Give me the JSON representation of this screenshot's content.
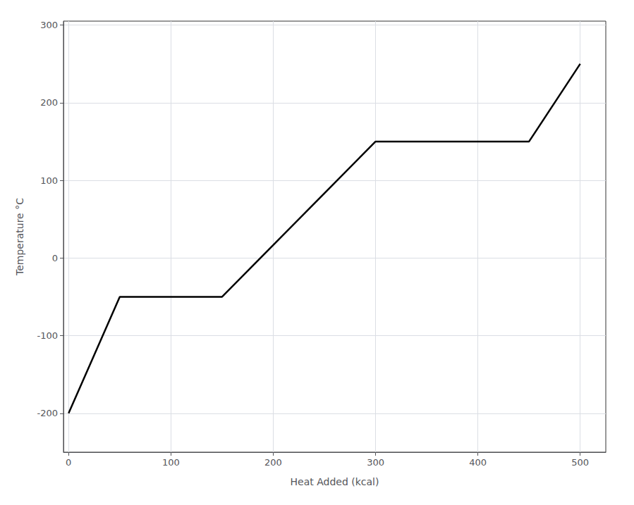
{
  "chart_data": {
    "type": "line",
    "x": [
      0,
      50,
      50,
      150,
      300,
      300,
      450,
      500
    ],
    "values": [
      -200,
      -50,
      -50,
      -50,
      150,
      150,
      150,
      250
    ],
    "color": "#000000",
    "line_style": "solid",
    "xlabel": "Heat Added (kcal)",
    "ylabel": "Temperature °C",
    "xlim": [
      -5,
      525
    ],
    "ylim": [
      -250,
      305
    ],
    "xticks": [
      0,
      100,
      200,
      300,
      400,
      500
    ],
    "yticks": [
      -200,
      -100,
      0,
      100,
      200,
      300
    ],
    "grid": true
  }
}
